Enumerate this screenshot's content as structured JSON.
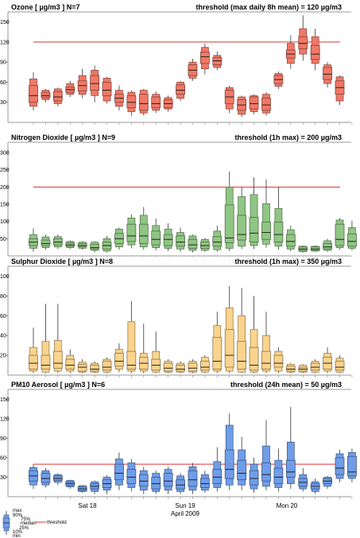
{
  "chart_data": [
    {
      "type": "boxplot",
      "title": "Ozone [ µg/m3 ]   N=7",
      "threshold_label": "threshold (max daily 8h mean) = 120 µg/m3",
      "threshold": 120,
      "ylim": [
        0,
        165
      ],
      "yticks": [
        "30",
        "60",
        "90",
        "120",
        "150"
      ],
      "ytick_values": [
        30,
        60,
        90,
        120,
        150
      ],
      "color": "#f07867",
      "boxes": [
        {
          "min": 18,
          "p10": 24,
          "q1": 30,
          "med": 40,
          "q3": 55,
          "p90": 65,
          "max": 75
        },
        {
          "min": 30,
          "p10": 34,
          "q1": 37,
          "med": 40,
          "q3": 45,
          "p90": 48,
          "max": 50
        },
        {
          "min": 24,
          "p10": 28,
          "q1": 32,
          "med": 38,
          "q3": 46,
          "p90": 50,
          "max": 52
        },
        {
          "min": 38,
          "p10": 42,
          "q1": 45,
          "med": 49,
          "q3": 53,
          "p90": 58,
          "max": 62
        },
        {
          "min": 36,
          "p10": 42,
          "q1": 47,
          "med": 55,
          "q3": 62,
          "p90": 70,
          "max": 80
        },
        {
          "min": 30,
          "p10": 40,
          "q1": 48,
          "med": 58,
          "q3": 70,
          "p90": 78,
          "max": 85
        },
        {
          "min": 28,
          "p10": 32,
          "q1": 40,
          "med": 48,
          "q3": 60,
          "p90": 66,
          "max": 68
        },
        {
          "min": 18,
          "p10": 24,
          "q1": 30,
          "med": 36,
          "q3": 42,
          "p90": 48,
          "max": 55
        },
        {
          "min": 10,
          "p10": 16,
          "q1": 22,
          "med": 30,
          "q3": 40,
          "p90": 45,
          "max": 48
        },
        {
          "min": 10,
          "p10": 14,
          "q1": 18,
          "med": 28,
          "q3": 42,
          "p90": 48,
          "max": 50
        },
        {
          "min": 14,
          "p10": 18,
          "q1": 22,
          "med": 28,
          "q3": 38,
          "p90": 42,
          "max": 46
        },
        {
          "min": 16,
          "p10": 20,
          "q1": 22,
          "med": 28,
          "q3": 34,
          "p90": 37,
          "max": 40
        },
        {
          "min": 32,
          "p10": 36,
          "q1": 42,
          "med": 48,
          "q3": 56,
          "p90": 60,
          "max": 62
        },
        {
          "min": 62,
          "p10": 66,
          "q1": 70,
          "med": 78,
          "q3": 86,
          "p90": 90,
          "max": 95
        },
        {
          "min": 72,
          "p10": 80,
          "q1": 88,
          "med": 98,
          "q3": 105,
          "p90": 112,
          "max": 118
        },
        {
          "min": 78,
          "p10": 82,
          "q1": 86,
          "med": 92,
          "q3": 97,
          "p90": 100,
          "max": 106
        },
        {
          "min": 14,
          "p10": 20,
          "q1": 28,
          "med": 38,
          "q3": 48,
          "p90": 52,
          "max": 55
        },
        {
          "min": 8,
          "p10": 12,
          "q1": 18,
          "med": 26,
          "q3": 34,
          "p90": 38,
          "max": 40
        },
        {
          "min": 12,
          "p10": 16,
          "q1": 20,
          "med": 28,
          "q3": 38,
          "p90": 40,
          "max": 42
        },
        {
          "min": 10,
          "p10": 14,
          "q1": 18,
          "med": 26,
          "q3": 36,
          "p90": 42,
          "max": 45
        },
        {
          "min": 50,
          "p10": 54,
          "q1": 58,
          "med": 64,
          "q3": 70,
          "p90": 73,
          "max": 76
        },
        {
          "min": 80,
          "p10": 88,
          "q1": 96,
          "med": 102,
          "q3": 108,
          "p90": 118,
          "max": 130
        },
        {
          "min": 92,
          "p10": 102,
          "q1": 110,
          "med": 118,
          "q3": 128,
          "p90": 140,
          "max": 160
        },
        {
          "min": 78,
          "p10": 88,
          "q1": 94,
          "med": 102,
          "q3": 115,
          "p90": 128,
          "max": 140
        },
        {
          "min": 52,
          "p10": 58,
          "q1": 64,
          "med": 72,
          "q3": 82,
          "p90": 86,
          "max": 90
        },
        {
          "min": 26,
          "p10": 32,
          "q1": 42,
          "med": 52,
          "q3": 62,
          "p90": 68,
          "max": 70
        }
      ]
    },
    {
      "type": "boxplot",
      "title": "Nitrogen Dioxide [ µg/m3 ]   N=9",
      "threshold_label": "threshold (1h max) = 200 µg/m3",
      "threshold": 200,
      "ylim": [
        0,
        330
      ],
      "yticks": [
        "50",
        "100",
        "150",
        "200",
        "250",
        "300"
      ],
      "ytick_values": [
        50,
        100,
        150,
        200,
        250,
        300
      ],
      "color": "#90c683",
      "boxes": [
        {
          "min": 12,
          "p10": 22,
          "q1": 30,
          "med": 40,
          "q3": 50,
          "p90": 62,
          "max": 80
        },
        {
          "min": 18,
          "p10": 24,
          "q1": 30,
          "med": 36,
          "q3": 46,
          "p90": 55,
          "max": 62
        },
        {
          "min": 20,
          "p10": 26,
          "q1": 32,
          "med": 40,
          "q3": 50,
          "p90": 56,
          "max": 62
        },
        {
          "min": 20,
          "p10": 24,
          "q1": 28,
          "med": 32,
          "q3": 38,
          "p90": 42,
          "max": 45
        },
        {
          "min": 18,
          "p10": 22,
          "q1": 26,
          "med": 30,
          "q3": 36,
          "p90": 40,
          "max": 42
        },
        {
          "min": 10,
          "p10": 16,
          "q1": 20,
          "med": 24,
          "q3": 34,
          "p90": 40,
          "max": 42
        },
        {
          "min": 10,
          "p10": 14,
          "q1": 20,
          "med": 30,
          "q3": 40,
          "p90": 50,
          "max": 58
        },
        {
          "min": 18,
          "p10": 26,
          "q1": 36,
          "med": 50,
          "q3": 65,
          "p90": 78,
          "max": 82
        },
        {
          "min": 22,
          "p10": 32,
          "q1": 42,
          "med": 58,
          "q3": 92,
          "p90": 110,
          "max": 120
        },
        {
          "min": 18,
          "p10": 26,
          "q1": 36,
          "med": 58,
          "q3": 92,
          "p90": 118,
          "max": 142
        },
        {
          "min": 16,
          "p10": 24,
          "q1": 32,
          "med": 48,
          "q3": 72,
          "p90": 88,
          "max": 108
        },
        {
          "min": 14,
          "p10": 22,
          "q1": 30,
          "med": 48,
          "q3": 62,
          "p90": 78,
          "max": 95
        },
        {
          "min": 12,
          "p10": 20,
          "q1": 28,
          "med": 40,
          "q3": 58,
          "p90": 68,
          "max": 82
        },
        {
          "min": 10,
          "p10": 16,
          "q1": 22,
          "med": 32,
          "q3": 48,
          "p90": 58,
          "max": 62
        },
        {
          "min": 12,
          "p10": 16,
          "q1": 22,
          "med": 30,
          "q3": 40,
          "p90": 48,
          "max": 52
        },
        {
          "min": 12,
          "p10": 18,
          "q1": 28,
          "med": 40,
          "q3": 56,
          "p90": 72,
          "max": 88
        },
        {
          "min": 14,
          "p10": 22,
          "q1": 38,
          "med": 52,
          "q3": 148,
          "p90": 200,
          "max": 245
        },
        {
          "min": 20,
          "p10": 28,
          "q1": 46,
          "med": 62,
          "q3": 118,
          "p90": 172,
          "max": 200
        },
        {
          "min": 20,
          "p10": 30,
          "q1": 40,
          "med": 66,
          "q3": 112,
          "p90": 178,
          "max": 228
        },
        {
          "min": 24,
          "p10": 34,
          "q1": 48,
          "med": 68,
          "q3": 98,
          "p90": 152,
          "max": 222
        },
        {
          "min": 18,
          "p10": 28,
          "q1": 40,
          "med": 62,
          "q3": 98,
          "p90": 138,
          "max": 200
        },
        {
          "min": 14,
          "p10": 20,
          "q1": 28,
          "med": 42,
          "q3": 62,
          "p90": 76,
          "max": 88
        },
        {
          "min": 10,
          "p10": 12,
          "q1": 16,
          "med": 20,
          "q3": 26,
          "p90": 28,
          "max": 30
        },
        {
          "min": 12,
          "p10": 14,
          "q1": 16,
          "med": 20,
          "q3": 26,
          "p90": 28,
          "max": 30
        },
        {
          "min": 12,
          "p10": 16,
          "q1": 20,
          "med": 26,
          "q3": 36,
          "p90": 44,
          "max": 50
        },
        {
          "min": 18,
          "p10": 24,
          "q1": 30,
          "med": 48,
          "q3": 92,
          "p90": 104,
          "max": 110
        },
        {
          "min": 16,
          "p10": 22,
          "q1": 28,
          "med": 42,
          "q3": 64,
          "p90": 82,
          "max": 102
        }
      ]
    },
    {
      "type": "boxplot",
      "title": "Sulphur Dioxide [ µg/m3 ]   N=8",
      "threshold_label": "threshold (1h max) = 350 µg/m3",
      "threshold": 350,
      "ylim": [
        0,
        110
      ],
      "yticks": [
        "20",
        "40",
        "60",
        "80",
        "100"
      ],
      "ytick_values": [
        20,
        40,
        60,
        80,
        100
      ],
      "color": "#fad38c",
      "boxes": [
        {
          "min": 2,
          "p10": 4,
          "q1": 6,
          "med": 12,
          "q3": 20,
          "p90": 28,
          "max": 48
        },
        {
          "min": 2,
          "p10": 3,
          "q1": 6,
          "med": 10,
          "q3": 20,
          "p90": 34,
          "max": 72
        },
        {
          "min": 2,
          "p10": 4,
          "q1": 7,
          "med": 12,
          "q3": 24,
          "p90": 35,
          "max": 72
        },
        {
          "min": 2,
          "p10": 4,
          "q1": 6,
          "med": 10,
          "q3": 16,
          "p90": 20,
          "max": 26
        },
        {
          "min": 2,
          "p10": 3,
          "q1": 4,
          "med": 8,
          "q3": 11,
          "p90": 13,
          "max": 16
        },
        {
          "min": 2,
          "p10": 3,
          "q1": 4,
          "med": 6,
          "q3": 10,
          "p90": 12,
          "max": 14
        },
        {
          "min": 2,
          "p10": 3,
          "q1": 5,
          "med": 8,
          "q3": 14,
          "p90": 16,
          "max": 18
        },
        {
          "min": 3,
          "p10": 6,
          "q1": 9,
          "med": 14,
          "q3": 22,
          "p90": 26,
          "max": 32
        },
        {
          "min": 2,
          "p10": 4,
          "q1": 6,
          "med": 10,
          "q3": 24,
          "p90": 54,
          "max": 75
        },
        {
          "min": 2,
          "p10": 4,
          "q1": 6,
          "med": 12,
          "q3": 18,
          "p90": 22,
          "max": 52
        },
        {
          "min": 2,
          "p10": 3,
          "q1": 5,
          "med": 10,
          "q3": 16,
          "p90": 24,
          "max": 44
        },
        {
          "min": 2,
          "p10": 3,
          "q1": 4,
          "med": 7,
          "q3": 12,
          "p90": 14,
          "max": 16
        },
        {
          "min": 2,
          "p10": 3,
          "q1": 4,
          "med": 6,
          "q3": 10,
          "p90": 12,
          "max": 14
        },
        {
          "min": 2,
          "p10": 3,
          "q1": 4,
          "med": 7,
          "q3": 12,
          "p90": 14,
          "max": 16
        },
        {
          "min": 2,
          "p10": 3,
          "q1": 5,
          "med": 8,
          "q3": 14,
          "p90": 18,
          "max": 20
        },
        {
          "min": 2,
          "p10": 4,
          "q1": 6,
          "med": 14,
          "q3": 38,
          "p90": 50,
          "max": 64
        },
        {
          "min": 2,
          "p10": 4,
          "q1": 8,
          "med": 20,
          "q3": 46,
          "p90": 68,
          "max": 90
        },
        {
          "min": 2,
          "p10": 3,
          "q1": 6,
          "med": 14,
          "q3": 34,
          "p90": 60,
          "max": 88
        },
        {
          "min": 2,
          "p10": 3,
          "q1": 5,
          "med": 10,
          "q3": 28,
          "p90": 46,
          "max": 80
        },
        {
          "min": 2,
          "p10": 4,
          "q1": 6,
          "med": 12,
          "q3": 24,
          "p90": 40,
          "max": 64
        },
        {
          "min": 2,
          "p10": 4,
          "q1": 8,
          "med": 12,
          "q3": 20,
          "p90": 24,
          "max": 28
        },
        {
          "min": 2,
          "p10": 3,
          "q1": 4,
          "med": 6,
          "q3": 9,
          "p90": 11,
          "max": 12
        },
        {
          "min": 2,
          "p10": 3,
          "q1": 4,
          "med": 6,
          "q3": 8,
          "p90": 10,
          "max": 11
        },
        {
          "min": 2,
          "p10": 3,
          "q1": 5,
          "med": 8,
          "q3": 12,
          "p90": 14,
          "max": 16
        },
        {
          "min": 2,
          "p10": 4,
          "q1": 6,
          "med": 12,
          "q3": 18,
          "p90": 22,
          "max": 28
        },
        {
          "min": 2,
          "p10": 3,
          "q1": 5,
          "med": 8,
          "q3": 14,
          "p90": 17,
          "max": 20
        }
      ]
    },
    {
      "type": "boxplot",
      "title": "PM10 Aerosol [ µg/m3 ]   N=6",
      "threshold_label": "threshold (24h mean) = 50 µg/m3",
      "threshold": 50,
      "ylim": [
        0,
        165
      ],
      "yticks": [
        "30",
        "60",
        "90",
        "120",
        "150"
      ],
      "ytick_values": [
        30,
        60,
        90,
        120,
        150
      ],
      "color": "#6f9de8",
      "boxes": [
        {
          "min": 12,
          "p10": 18,
          "q1": 24,
          "med": 32,
          "q3": 40,
          "p90": 45,
          "max": 50
        },
        {
          "min": 14,
          "p10": 18,
          "q1": 22,
          "med": 28,
          "q3": 36,
          "p90": 40,
          "max": 44
        },
        {
          "min": 18,
          "p10": 22,
          "q1": 25,
          "med": 28,
          "q3": 32,
          "p90": 34,
          "max": 36
        },
        {
          "min": 12,
          "p10": 15,
          "q1": 17,
          "med": 20,
          "q3": 23,
          "p90": 25,
          "max": 26
        },
        {
          "min": 6,
          "p10": 8,
          "q1": 9,
          "med": 12,
          "q3": 15,
          "p90": 17,
          "max": 18
        },
        {
          "min": 4,
          "p10": 8,
          "q1": 12,
          "med": 16,
          "q3": 20,
          "p90": 23,
          "max": 25
        },
        {
          "min": 4,
          "p10": 10,
          "q1": 14,
          "med": 20,
          "q3": 26,
          "p90": 30,
          "max": 33
        },
        {
          "min": 10,
          "p10": 18,
          "q1": 26,
          "med": 36,
          "q3": 50,
          "p90": 58,
          "max": 68
        },
        {
          "min": 8,
          "p10": 14,
          "q1": 20,
          "med": 30,
          "q3": 42,
          "p90": 52,
          "max": 58
        },
        {
          "min": 4,
          "p10": 10,
          "q1": 16,
          "med": 24,
          "q3": 34,
          "p90": 40,
          "max": 46
        },
        {
          "min": 4,
          "p10": 8,
          "q1": 12,
          "med": 20,
          "q3": 30,
          "p90": 36,
          "max": 40
        },
        {
          "min": 4,
          "p10": 10,
          "q1": 16,
          "med": 24,
          "q3": 36,
          "p90": 42,
          "max": 46
        },
        {
          "min": 4,
          "p10": 8,
          "q1": 12,
          "med": 18,
          "q3": 26,
          "p90": 32,
          "max": 36
        },
        {
          "min": 4,
          "p10": 10,
          "q1": 16,
          "med": 26,
          "q3": 40,
          "p90": 46,
          "max": 52
        },
        {
          "min": 6,
          "p10": 10,
          "q1": 14,
          "med": 20,
          "q3": 28,
          "p90": 34,
          "max": 40
        },
        {
          "min": 8,
          "p10": 14,
          "q1": 20,
          "med": 30,
          "q3": 42,
          "p90": 54,
          "max": 76
        },
        {
          "min": 10,
          "p10": 18,
          "q1": 28,
          "med": 42,
          "q3": 72,
          "p90": 110,
          "max": 128
        },
        {
          "min": 10,
          "p10": 18,
          "q1": 26,
          "med": 36,
          "q3": 56,
          "p90": 72,
          "max": 92
        },
        {
          "min": 6,
          "p10": 12,
          "q1": 18,
          "med": 28,
          "q3": 40,
          "p90": 50,
          "max": 60
        },
        {
          "min": 10,
          "p10": 16,
          "q1": 24,
          "med": 34,
          "q3": 52,
          "p90": 78,
          "max": 118
        },
        {
          "min": 8,
          "p10": 14,
          "q1": 20,
          "med": 30,
          "q3": 44,
          "p90": 56,
          "max": 74
        },
        {
          "min": 12,
          "p10": 20,
          "q1": 30,
          "med": 38,
          "q3": 56,
          "p90": 84,
          "max": 138
        },
        {
          "min": 8,
          "p10": 12,
          "q1": 16,
          "med": 22,
          "q3": 28,
          "p90": 34,
          "max": 44
        },
        {
          "min": 4,
          "p10": 8,
          "q1": 12,
          "med": 16,
          "q3": 20,
          "p90": 23,
          "max": 28
        },
        {
          "min": 12,
          "p10": 16,
          "q1": 20,
          "med": 24,
          "q3": 28,
          "p90": 30,
          "max": 32
        },
        {
          "min": 22,
          "p10": 28,
          "q1": 34,
          "med": 44,
          "q3": 60,
          "p90": 66,
          "max": 72
        },
        {
          "min": 22,
          "p10": 28,
          "q1": 32,
          "med": 38,
          "q3": 62,
          "p90": 68,
          "max": 74
        }
      ]
    }
  ],
  "x_axis": {
    "day_labels": [
      "Sat 18",
      "Sun 19",
      "Mon 20"
    ],
    "day_label_colors": [
      "#000000",
      "#cc0000",
      "#000000"
    ],
    "month_label": "April 2009"
  },
  "legend": {
    "labels": [
      "max",
      "90%",
      "75%",
      "median",
      "25%",
      "10%",
      "min"
    ],
    "threshold_label": "threshold",
    "threshold_color": "#e03030"
  },
  "colors": {
    "threshold_line": "#e03030",
    "frame": "#999999",
    "ozone": "#f07867",
    "no2": "#90c683",
    "so2": "#fad38c",
    "pm10": "#6f9de8"
  }
}
